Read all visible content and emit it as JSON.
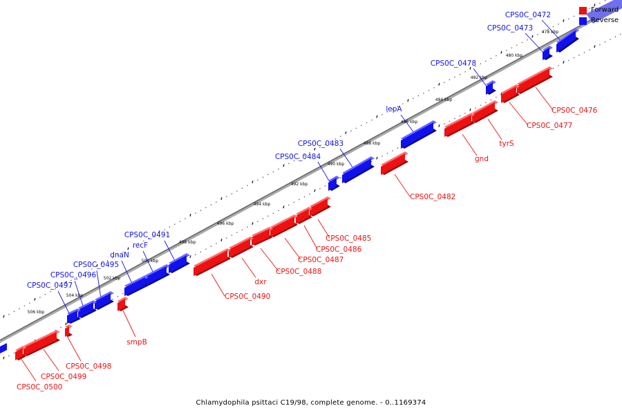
{
  "legend": {
    "forward": {
      "label": "Forward",
      "color": "#ee1111"
    },
    "reverse": {
      "label": "Reverse",
      "color": "#1111ee"
    }
  },
  "caption": "Chlamydophila psittaci C19/98, complete genome. - 0..1169374",
  "ticks": [
    "478 kbp",
    "480 kbp",
    "482 kbp",
    "484 kbp",
    "486 kbp",
    "488 kbp",
    "490 kbp",
    "492 kbp",
    "494 kbp",
    "496 kbp",
    "498 kbp",
    "500 kbp",
    "502 kbp",
    "504 kbp",
    "506 kbp"
  ],
  "genes": [
    {
      "label": "CPS0C_0472",
      "strand": "reverse"
    },
    {
      "label": "CPS0C_0473",
      "strand": "reverse"
    },
    {
      "label": "CPS0C_0478",
      "strand": "reverse"
    },
    {
      "label": "lepA",
      "strand": "reverse"
    },
    {
      "label": "CPS0C_0483",
      "strand": "reverse"
    },
    {
      "label": "CPS0C_0484",
      "strand": "reverse"
    },
    {
      "label": "CPS0C_0491",
      "strand": "reverse"
    },
    {
      "label": "recF",
      "strand": "reverse"
    },
    {
      "label": "dnaN",
      "strand": "reverse"
    },
    {
      "label": "CPS0C_0495",
      "strand": "reverse"
    },
    {
      "label": "CPS0C_0496",
      "strand": "reverse"
    },
    {
      "label": "CPS0C_0497",
      "strand": "reverse"
    },
    {
      "label": "CPS0C_0476",
      "strand": "forward"
    },
    {
      "label": "CPS0C_0477",
      "strand": "forward"
    },
    {
      "label": "tyrS",
      "strand": "forward"
    },
    {
      "label": "gnd",
      "strand": "forward"
    },
    {
      "label": "CPS0C_0482",
      "strand": "forward"
    },
    {
      "label": "CPS0C_0485",
      "strand": "forward"
    },
    {
      "label": "CPS0C_0486",
      "strand": "forward"
    },
    {
      "label": "CPS0C_0487",
      "strand": "forward"
    },
    {
      "label": "CPS0C_0488",
      "strand": "forward"
    },
    {
      "label": "dxr",
      "strand": "forward"
    },
    {
      "label": "CPS0C_0490",
      "strand": "forward"
    },
    {
      "label": "smpB",
      "strand": "forward"
    },
    {
      "label": "CPS0C_0498",
      "strand": "forward"
    },
    {
      "label": "CPS0C_0499",
      "strand": "forward"
    },
    {
      "label": "CPS0C_0500",
      "strand": "forward"
    }
  ]
}
